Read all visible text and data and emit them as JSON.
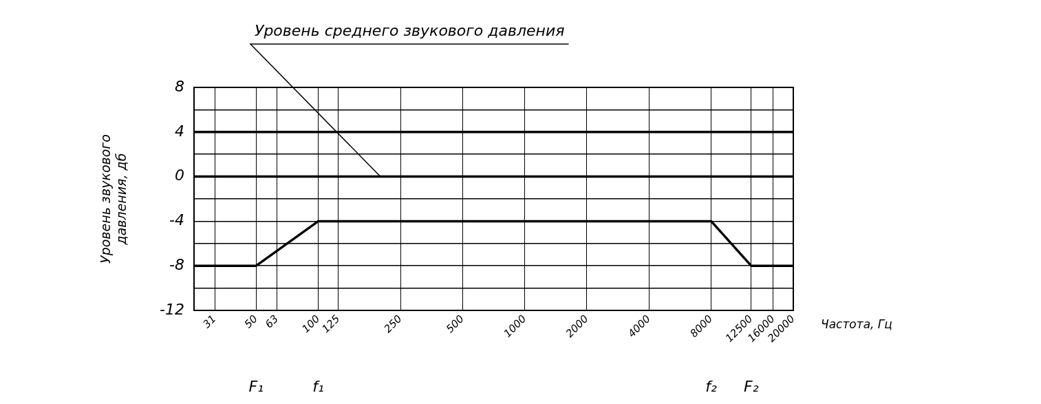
{
  "chart_data": {
    "type": "line",
    "ylabel": "Уровень звукового давления, дб",
    "xlabel": "Частота, Гц",
    "log": "x",
    "xlim": [
      25,
      20000
    ],
    "xticks": [
      {
        "value": 31.5,
        "label": "31"
      },
      50,
      63,
      100,
      125,
      250,
      500,
      1000,
      2000,
      4000,
      8000,
      12500,
      16000,
      20000
    ],
    "ylim": [
      -12,
      8
    ],
    "yticks": [
      -12,
      {
        "value": -10,
        "label": null
      },
      -8,
      {
        "value": -6,
        "label": null
      },
      -4,
      {
        "value": -2,
        "label": null
      },
      0,
      {
        "value": 2,
        "label": null
      },
      4,
      {
        "value": 6,
        "label": null
      },
      8
    ],
    "grid": true,
    "legend": false,
    "marker": "none",
    "line_style": "solid",
    "series": [
      {
        "color": "#000000",
        "x": [
          25,
          20000
        ],
        "values": [
          4,
          4
        ]
      },
      {
        "color": "#000000",
        "x": [
          25,
          20000
        ],
        "values": [
          0,
          0
        ]
      },
      {
        "color": "#000000",
        "x": [
          25,
          50,
          100,
          8000,
          12500,
          20000
        ],
        "values": [
          -8,
          -8,
          -4,
          -4,
          -8,
          -8
        ]
      }
    ],
    "annotations": [
      {
        "text": "Уровень среднего звукового давления",
        "x": 200,
        "y": 0
      },
      "F₁",
      "f₁",
      "f₂",
      "F₂"
    ]
  }
}
